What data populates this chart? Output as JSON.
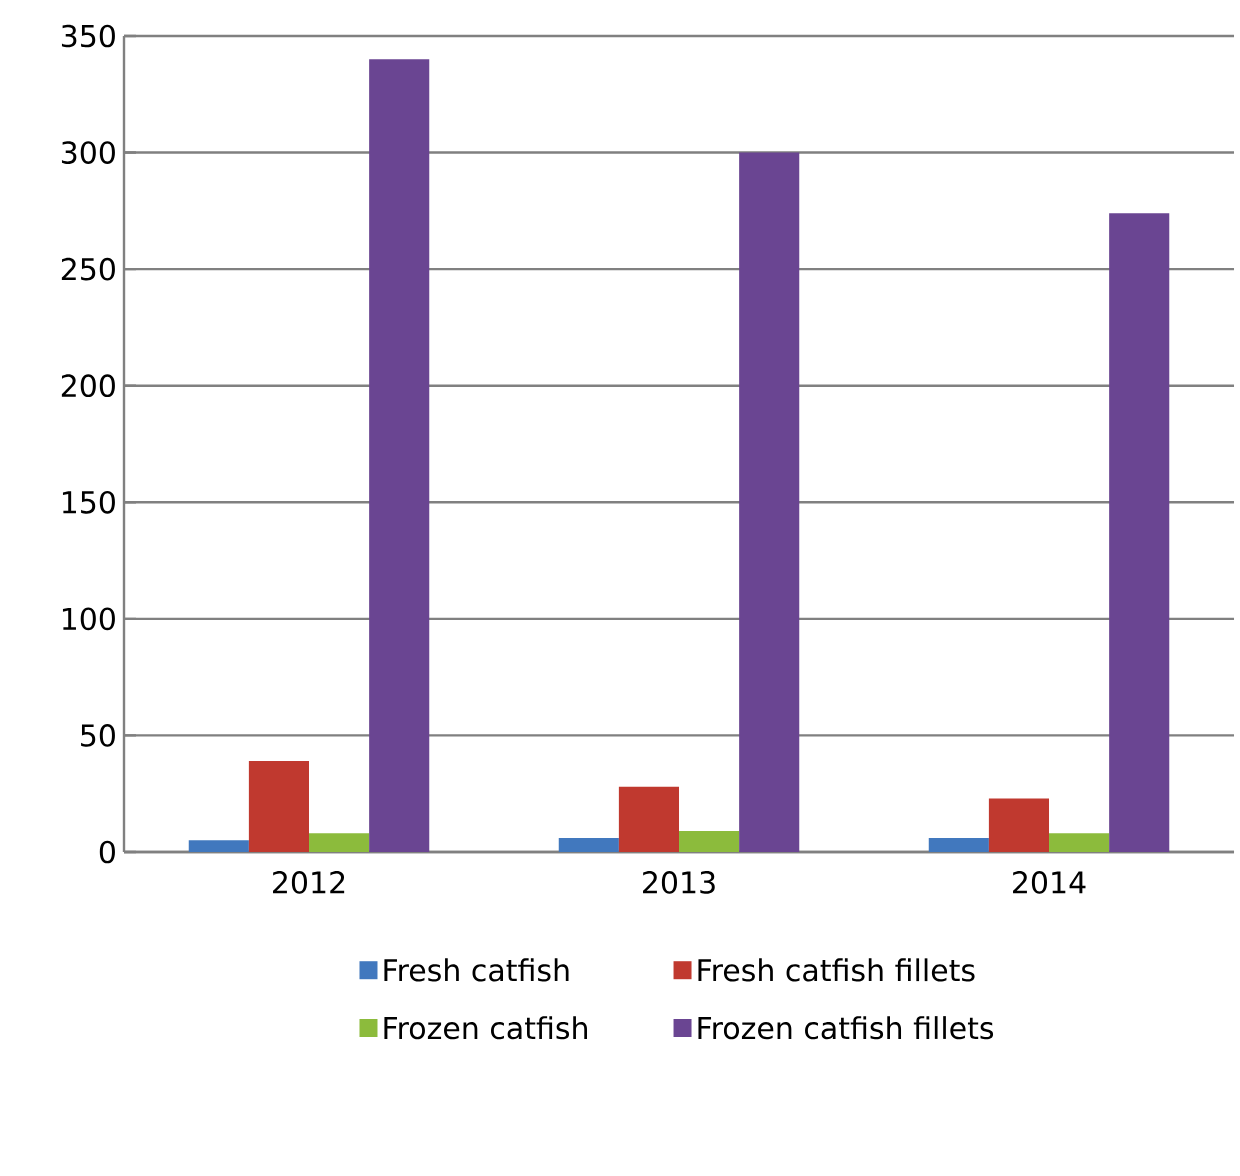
{
  "chart_data": {
    "type": "bar",
    "categories": [
      "2012",
      "2013",
      "2014"
    ],
    "series": [
      {
        "name": "Fresh catfish",
        "color": "#4178be",
        "values": [
          5,
          6,
          6
        ]
      },
      {
        "name": "Fresh catfish fillets",
        "color": "#c0392f",
        "values": [
          39,
          28,
          23
        ]
      },
      {
        "name": "Frozen catfish",
        "color": "#8cbb3c",
        "values": [
          8,
          9,
          8
        ]
      },
      {
        "name": "Frozen catfish fillets",
        "color": "#6a4592",
        "values": [
          340,
          300,
          274
        ]
      }
    ],
    "ylim": [
      0,
      350
    ],
    "yticks": [
      0,
      50,
      100,
      150,
      200,
      250,
      300,
      350
    ],
    "grid": "y",
    "legend": "bottom"
  }
}
